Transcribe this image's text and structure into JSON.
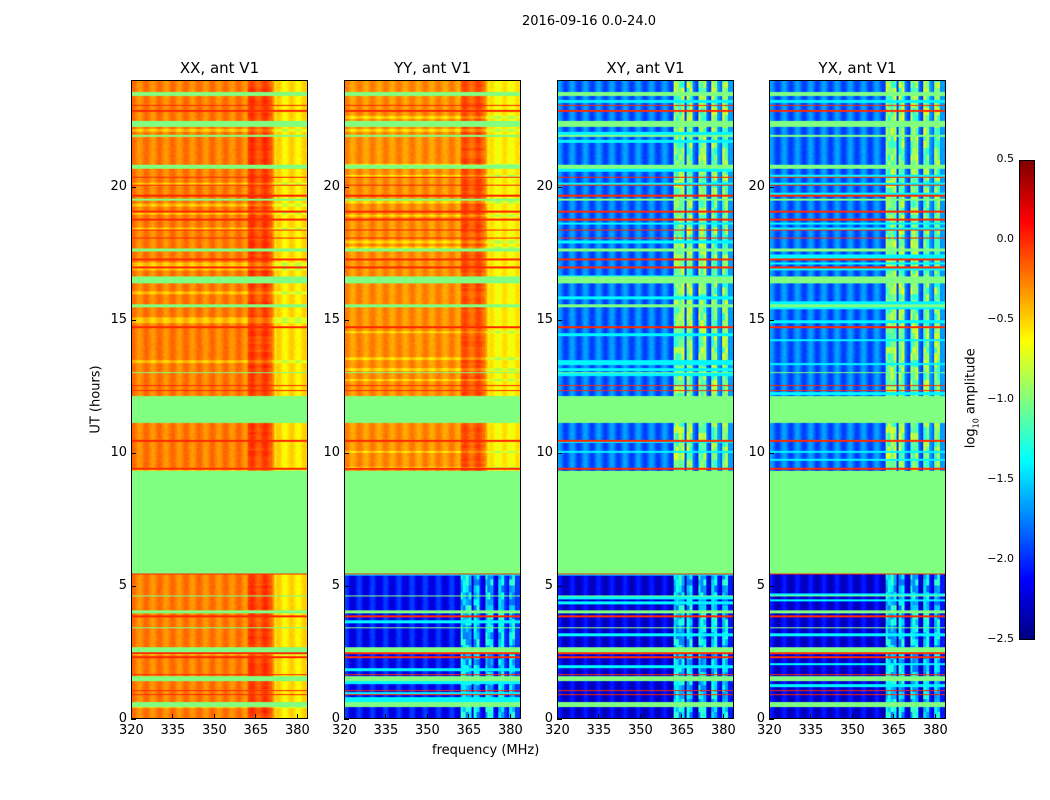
{
  "chart_data": {
    "type": "heatmap",
    "title": "2016-09-16 0.0-24.0",
    "xlabel": "frequency (MHz)",
    "ylabel": "UT (hours)",
    "xlim": [
      320,
      384
    ],
    "ylim": [
      0,
      24
    ],
    "xticks": [
      320,
      335,
      350,
      365,
      380
    ],
    "yticks": [
      0,
      5,
      10,
      15,
      20
    ],
    "panels": [
      {
        "title": "XX, ant V1",
        "base": -0.25,
        "low_time_base": -0.25
      },
      {
        "title": "YY, ant V1",
        "base": -0.3,
        "low_time_base": -2.1
      },
      {
        "title": "XY, ant V1",
        "base": -1.9,
        "low_time_base": -2.2
      },
      {
        "title": "YX, ant V1",
        "base": -1.9,
        "low_time_base": -2.2
      }
    ],
    "flagged_value": -1.0,
    "flagged_hours": [
      [
        5.45,
        9.35
      ],
      [
        11.15,
        12.15
      ],
      [
        0.45,
        0.62
      ],
      [
        1.4,
        1.6
      ],
      [
        2.5,
        2.7
      ],
      [
        3.95,
        4.08
      ],
      [
        16.4,
        16.65
      ],
      [
        20.7,
        20.85
      ],
      [
        22.3,
        22.5
      ],
      [
        23.45,
        23.6
      ],
      [
        19.5,
        19.58
      ],
      [
        17.6,
        17.7
      ],
      [
        15.5,
        15.6
      ],
      [
        21.9,
        21.98
      ],
      [
        13.0,
        13.05
      ],
      [
        4.6,
        4.65
      ],
      [
        3.4,
        3.45
      ]
    ],
    "red_hours": [
      0.9,
      1.05,
      1.65,
      2.3,
      2.45,
      3.85,
      5.45,
      9.4,
      10.45,
      12.35,
      12.55,
      14.75,
      17.0,
      17.3,
      18.1,
      18.4,
      18.8,
      19.1,
      19.7,
      20.1,
      20.4,
      22.9,
      23.1
    ],
    "colorbar": {
      "label": "log10 amplitude",
      "label_main": "log",
      "label_sub": "10",
      "label_rest": " amplitude",
      "range": [
        -2.5,
        0.5
      ],
      "ticks": [
        "0.5",
        "0.0",
        "−0.5",
        "−1.0",
        "−1.5",
        "−2.0",
        "−2.5"
      ],
      "tick_values": [
        0.5,
        0.0,
        -0.5,
        -1.0,
        -1.5,
        -2.0,
        -2.5
      ],
      "colormap": "jet"
    }
  }
}
